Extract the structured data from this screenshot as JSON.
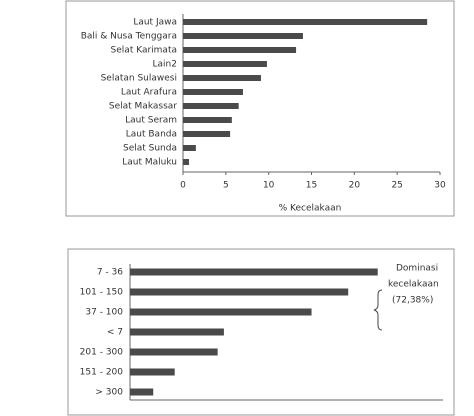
{
  "chart_data": [
    {
      "type": "bar",
      "orientation": "horizontal",
      "categories": [
        "Laut Jawa",
        "Bali & Nusa Tenggara",
        "Selat Karimata",
        "Lain2",
        "Selatan Sulawesi",
        "Laut Arafura",
        "Selat Makassar",
        "Laut Seram",
        "Laut Banda",
        "Selat Sunda",
        "Laut Maluku"
      ],
      "values": [
        28.5,
        14,
        13.2,
        9.8,
        9.1,
        7,
        6.5,
        5.7,
        5.5,
        1.5,
        0.7
      ],
      "color": "#4a4a4a",
      "xlim": [
        0,
        30
      ],
      "xticks": [
        0,
        5,
        10,
        15,
        20,
        25,
        30
      ],
      "x_label": "% Kecelakaan"
    },
    {
      "type": "bar",
      "orientation": "horizontal",
      "categories": [
        "7 - 36",
        "101 - 150",
        "37 - 100",
        "< 7",
        "201 - 300",
        "151 - 200",
        "> 300"
      ],
      "values": [
        27.7,
        24.4,
        20.3,
        10.5,
        9.8,
        5,
        2.6
      ],
      "color": "#4a4a4a",
      "xlim": [
        0,
        35
      ],
      "annotation": [
        "Dominasi",
        "kecelakaan",
        "(72,38%)"
      ]
    }
  ]
}
